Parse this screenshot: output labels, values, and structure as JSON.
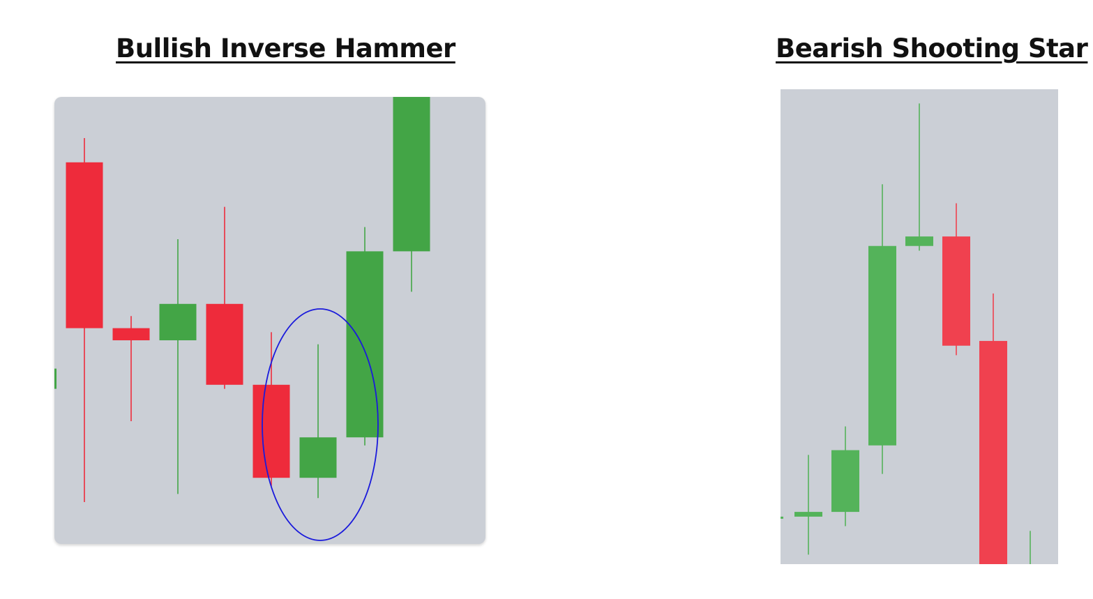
{
  "chart_data": [
    {
      "type": "candlestick",
      "title": "Bullish Inverse Hammer",
      "ylim": [
        0,
        100
      ],
      "candles": [
        {
          "o": 33,
          "h": 38,
          "l": 25,
          "c": 38,
          "dir": "up",
          "partial": true
        },
        {
          "o": 89,
          "h": 95,
          "l": 5,
          "c": 48
        },
        {
          "o": 48,
          "h": 51,
          "l": 25,
          "c": 45
        },
        {
          "o": 45,
          "h": 70,
          "l": 7,
          "c": 54
        },
        {
          "o": 54,
          "h": 78,
          "l": 33,
          "c": 34
        },
        {
          "o": 34,
          "h": 47,
          "l": 9,
          "c": 11
        },
        {
          "o": 11,
          "h": 44,
          "l": 6,
          "c": 21,
          "highlight": true
        },
        {
          "o": 21,
          "h": 73,
          "l": 19,
          "c": 67
        },
        {
          "o": 67,
          "h": 110,
          "l": 57,
          "c": 110
        }
      ],
      "annotations": [
        {
          "type": "ellipse",
          "around": 6,
          "color": "#1a1adb"
        }
      ],
      "colors": {
        "up": "#43a546",
        "down": "#ee2b3b",
        "background": "#cbcfd6"
      }
    },
    {
      "type": "candlestick",
      "title": "Bearish Shooting Star",
      "ylim": [
        0,
        100
      ],
      "candles": [
        {
          "o": 10,
          "h": 10,
          "l": 10,
          "c": 10,
          "partial": true
        },
        {
          "o": 10,
          "h": 23,
          "l": 2,
          "c": 11
        },
        {
          "o": 11,
          "h": 29,
          "l": 8,
          "c": 24
        },
        {
          "o": 25,
          "h": 80,
          "l": 19,
          "c": 67
        },
        {
          "o": 67,
          "h": 97,
          "l": 66,
          "c": 69
        },
        {
          "o": 69,
          "h": 76,
          "l": 44,
          "c": 46
        },
        {
          "o": 47,
          "h": 57,
          "l": 0,
          "c": 0
        },
        {
          "o": 0,
          "h": 7,
          "l": 0,
          "c": 0,
          "wick_only": true
        }
      ],
      "colors": {
        "up": "#54b35a",
        "down": "#f0414f",
        "background": "#cbcfd6"
      }
    }
  ]
}
